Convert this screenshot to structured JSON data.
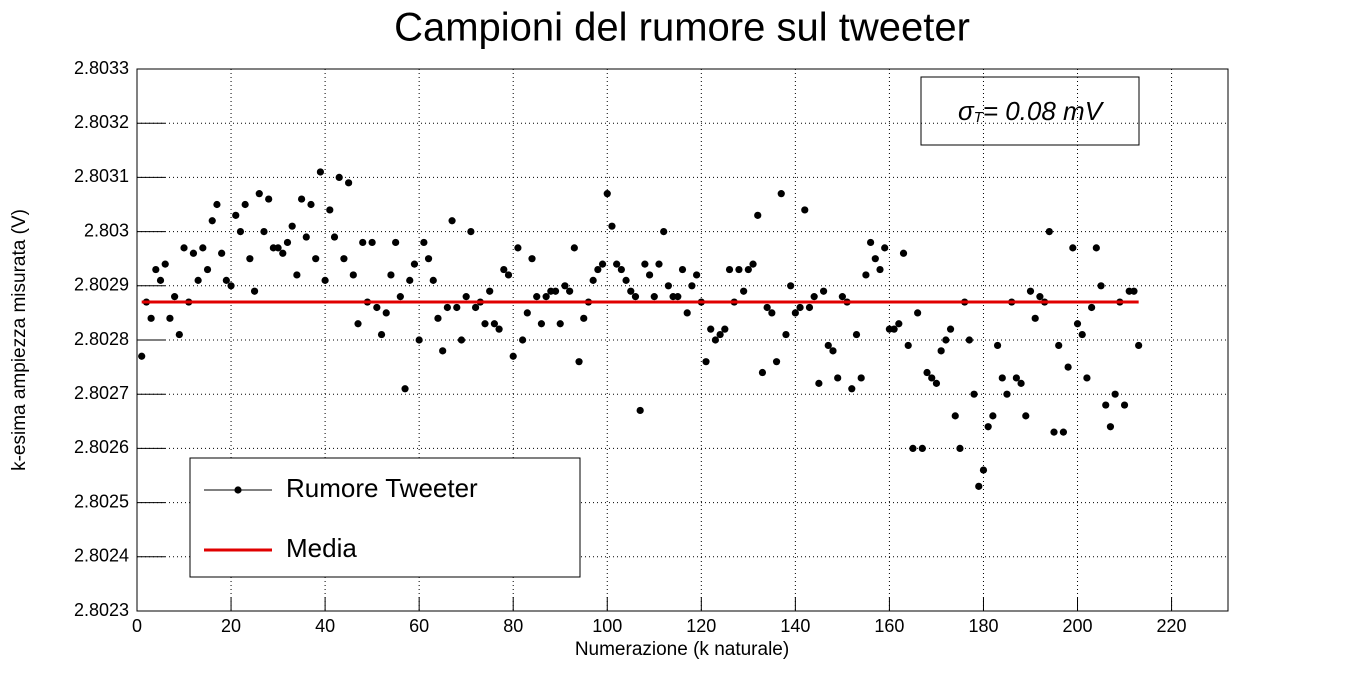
{
  "chart_data": {
    "type": "scatter",
    "title": "Campioni del rumore sul tweeter",
    "x_label": "Numerazione (k naturale)",
    "y_label": "k-esima ampiezza misurata (V)",
    "annotation": {
      "symbol": "σ",
      "subscript": "T",
      "text": "= 0.08 mV"
    },
    "xlim": [
      0,
      232
    ],
    "ylim": [
      2.8023,
      2.8033
    ],
    "xticks": [
      0,
      20,
      40,
      60,
      80,
      100,
      120,
      140,
      160,
      180,
      200,
      220
    ],
    "yticks": [
      2.8023,
      2.8024,
      2.8025,
      2.8026,
      2.8027,
      2.8028,
      2.8029,
      2.803,
      2.8031,
      2.8032,
      2.8033
    ],
    "grid": true,
    "legend": "lower left",
    "series": [
      {
        "name": "Rumore Tweeter",
        "color": "#000000",
        "mode": "markers",
        "x": [
          1,
          2,
          3,
          4,
          5,
          6,
          7,
          8,
          9,
          10,
          11,
          12,
          13,
          14,
          15,
          16,
          17,
          18,
          19,
          20,
          21,
          22,
          23,
          24,
          25,
          26,
          27,
          28,
          29,
          30,
          31,
          32,
          33,
          34,
          35,
          36,
          37,
          38,
          39,
          40,
          41,
          42,
          43,
          44,
          45,
          46,
          47,
          48,
          49,
          50,
          51,
          52,
          53,
          54,
          55,
          56,
          57,
          58,
          59,
          60,
          61,
          62,
          63,
          64,
          65,
          66,
          67,
          68,
          69,
          70,
          71,
          72,
          73,
          74,
          75,
          76,
          77,
          78,
          79,
          80,
          81,
          82,
          83,
          84,
          85,
          86,
          87,
          88,
          89,
          90,
          91,
          92,
          93,
          94,
          95,
          96,
          97,
          98,
          99,
          100,
          101,
          102,
          103,
          104,
          105,
          106,
          107,
          108,
          109,
          110,
          111,
          112,
          113,
          114,
          115,
          116,
          117,
          118,
          119,
          120,
          121,
          122,
          123,
          124,
          125,
          126,
          127,
          128,
          129,
          130,
          131,
          132,
          133,
          134,
          135,
          136,
          137,
          138,
          139,
          140,
          141,
          142,
          143,
          144,
          145,
          146,
          147,
          148,
          149,
          150,
          151,
          152,
          153,
          154,
          155,
          156,
          157,
          158,
          159,
          160,
          161,
          162,
          163,
          164,
          165,
          166,
          167,
          168,
          169,
          170,
          171,
          172,
          173,
          174,
          175,
          176,
          177,
          178,
          179,
          180,
          181,
          182,
          183,
          184,
          185,
          186,
          187,
          188,
          189,
          190,
          191,
          192,
          193,
          194,
          195,
          196,
          197,
          198,
          199,
          200,
          201,
          202,
          203,
          204,
          205,
          206,
          207,
          208,
          209,
          210,
          211,
          212,
          213
        ],
        "values": [
          2.80277,
          2.80287,
          2.80284,
          2.80293,
          2.80291,
          2.80294,
          2.80284,
          2.80288,
          2.80281,
          2.80297,
          2.80287,
          2.80296,
          2.80291,
          2.80297,
          2.80293,
          2.80302,
          2.80305,
          2.80296,
          2.80291,
          2.8029,
          2.80303,
          2.803,
          2.80305,
          2.80295,
          2.80289,
          2.80307,
          2.803,
          2.80306,
          2.80297,
          2.80297,
          2.80296,
          2.80298,
          2.80301,
          2.80292,
          2.80306,
          2.80299,
          2.80305,
          2.80295,
          2.80311,
          2.80291,
          2.80304,
          2.80299,
          2.8031,
          2.80295,
          2.80309,
          2.80292,
          2.80283,
          2.80298,
          2.80287,
          2.80298,
          2.80286,
          2.80281,
          2.80285,
          2.80292,
          2.80298,
          2.80288,
          2.80271,
          2.80291,
          2.80294,
          2.8028,
          2.80298,
          2.80295,
          2.80291,
          2.80284,
          2.80278,
          2.80286,
          2.80302,
          2.80286,
          2.8028,
          2.80288,
          2.803,
          2.80286,
          2.80287,
          2.80283,
          2.80289,
          2.80283,
          2.80282,
          2.80293,
          2.80292,
          2.80277,
          2.80297,
          2.8028,
          2.80285,
          2.80295,
          2.80288,
          2.80283,
          2.80288,
          2.80289,
          2.80289,
          2.80283,
          2.8029,
          2.80289,
          2.80297,
          2.80276,
          2.80284,
          2.80287,
          2.80291,
          2.80293,
          2.80294,
          2.80307,
          2.80301,
          2.80294,
          2.80293,
          2.80291,
          2.80289,
          2.80288,
          2.80267,
          2.80294,
          2.80292,
          2.80288,
          2.80294,
          2.803,
          2.8029,
          2.80288,
          2.80288,
          2.80293,
          2.80285,
          2.8029,
          2.80292,
          2.80287,
          2.80276,
          2.80282,
          2.8028,
          2.80281,
          2.80282,
          2.80293,
          2.80287,
          2.80293,
          2.80289,
          2.80293,
          2.80294,
          2.80303,
          2.80274,
          2.80286,
          2.80285,
          2.80276,
          2.80307,
          2.80281,
          2.8029,
          2.80285,
          2.80286,
          2.80304,
          2.80286,
          2.80288,
          2.80272,
          2.80289,
          2.80279,
          2.80278,
          2.80273,
          2.80288,
          2.80287,
          2.80271,
          2.80281,
          2.80273,
          2.80292,
          2.80298,
          2.80295,
          2.80293,
          2.80297,
          2.80282,
          2.80282,
          2.80283,
          2.80296,
          2.80279,
          2.8026,
          2.80285,
          2.8026,
          2.80274,
          2.80273,
          2.80272,
          2.80278,
          2.8028,
          2.80282,
          2.80266,
          2.8026,
          2.80287,
          2.8028,
          2.8027,
          2.80253,
          2.80256,
          2.80264,
          2.80266,
          2.80279,
          2.80273,
          2.8027,
          2.80287,
          2.80273,
          2.80272,
          2.80266,
          2.80289,
          2.80284,
          2.80288,
          2.80287,
          2.803,
          2.80263,
          2.80279,
          2.80263,
          2.80275,
          2.80297,
          2.80283,
          2.80281,
          2.80273,
          2.80286,
          2.80297,
          2.8029,
          2.80268,
          2.80264,
          2.8027,
          2.80287,
          2.80268,
          2.80289,
          2.80289,
          2.80279
        ]
      },
      {
        "name": "Media",
        "color": "#e00000",
        "mode": "line",
        "x": [
          1,
          213
        ],
        "values": [
          2.80287,
          2.80287
        ]
      }
    ]
  }
}
